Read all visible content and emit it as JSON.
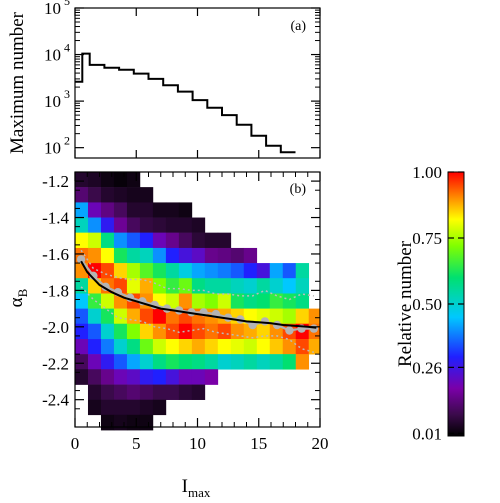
{
  "chart_data": [
    {
      "panel": "(a)",
      "type": "line",
      "step": true,
      "xlabel": "",
      "ylabel": "Maximum number",
      "yscale": "log",
      "xlim": [
        0,
        20
      ],
      "ylim": [
        60,
        100000
      ],
      "ytick_labels": [
        "10^2",
        "10^3",
        "10^4",
        "10^5"
      ],
      "yticks": [
        100,
        1000,
        10000,
        100000
      ],
      "bin_edges": [
        0,
        0.6,
        1.2,
        2.4,
        3.6,
        4.8,
        6.0,
        7.2,
        8.4,
        9.6,
        10.8,
        12.0,
        13.2,
        14.4,
        15.6,
        16.8,
        18.0
      ],
      "values": [
        2600,
        10500,
        6000,
        5200,
        4700,
        3900,
        3000,
        2200,
        1600,
        1050,
        720,
        500,
        310,
        180,
        110,
        80
      ]
    },
    {
      "panel": "(b)",
      "type": "heatmap",
      "xlabel": "I",
      "xlabel_sub": "max",
      "ylabel": "α",
      "ylabel_sub": "B",
      "xlim": [
        0,
        20
      ],
      "ylim": [
        -2.55,
        -1.15
      ],
      "xticks": [
        0,
        5,
        10,
        15,
        20
      ],
      "yticks": [
        -1.2,
        -1.4,
        -1.6,
        -1.8,
        -2.0,
        -2.2,
        -2.4
      ],
      "x_bin_edges": [
        0,
        1.06,
        2.12,
        3.18,
        4.24,
        5.3,
        6.36,
        7.42,
        8.48,
        9.54,
        10.6,
        11.66,
        12.72,
        13.78,
        14.84,
        15.9,
        16.96,
        18.02,
        19.08,
        20.14
      ],
      "y_bin_edges": [
        -1.15,
        -1.233,
        -1.317,
        -1.4,
        -1.483,
        -1.567,
        -1.65,
        -1.733,
        -1.817,
        -1.9,
        -1.983,
        -2.067,
        -2.15,
        -2.233,
        -2.317,
        -2.4,
        -2.483,
        -2.567
      ],
      "values": [
        [
          0.05,
          0.04,
          0.02,
          0.01,
          0.02,
          null,
          null,
          null,
          null,
          null,
          null,
          null,
          null,
          null,
          null,
          null,
          null,
          null,
          null
        ],
        [
          0.12,
          0.08,
          0.05,
          0.04,
          0.03,
          0.03,
          null,
          null,
          null,
          null,
          null,
          null,
          null,
          null,
          null,
          null,
          null,
          null,
          null
        ],
        [
          0.42,
          0.2,
          0.14,
          0.1,
          0.05,
          0.05,
          0.03,
          0.03,
          0.02,
          null,
          null,
          null,
          null,
          null,
          null,
          null,
          null,
          null,
          null
        ],
        [
          0.52,
          0.4,
          0.28,
          0.16,
          0.1,
          0.07,
          0.06,
          0.05,
          0.05,
          0.04,
          null,
          null,
          null,
          null,
          null,
          null,
          null,
          null,
          null
        ],
        [
          0.82,
          0.78,
          0.58,
          0.4,
          0.35,
          0.3,
          0.2,
          0.15,
          0.1,
          0.06,
          0.05,
          0.05,
          null,
          null,
          null,
          null,
          null,
          null,
          null
        ],
        [
          0.92,
          0.9,
          0.82,
          0.62,
          0.55,
          0.52,
          0.4,
          0.3,
          0.25,
          0.22,
          0.15,
          0.14,
          0.12,
          0.15,
          null,
          null,
          null,
          null,
          null
        ],
        [
          0.9,
          1.0,
          0.95,
          0.85,
          0.75,
          0.68,
          0.62,
          0.55,
          0.48,
          0.42,
          0.4,
          0.38,
          0.35,
          0.3,
          0.25,
          0.42,
          0.35,
          0.55,
          null
        ],
        [
          0.55,
          0.85,
          0.92,
          0.95,
          0.8,
          0.88,
          0.72,
          0.65,
          0.7,
          0.58,
          0.55,
          0.55,
          0.52,
          0.5,
          0.55,
          0.5,
          0.45,
          0.52,
          null
        ],
        [
          0.45,
          0.65,
          0.78,
          0.9,
          0.95,
          0.9,
          0.82,
          0.78,
          0.9,
          0.75,
          0.72,
          0.78,
          0.62,
          0.58,
          0.6,
          0.65,
          0.62,
          0.58,
          null
        ],
        [
          0.35,
          0.5,
          0.62,
          0.78,
          0.88,
          0.95,
          1.0,
          0.92,
          0.95,
          0.92,
          0.9,
          0.88,
          0.85,
          0.82,
          0.8,
          0.78,
          0.75,
          0.85,
          0.9
        ],
        [
          0.3,
          0.35,
          0.5,
          0.62,
          0.72,
          0.85,
          0.9,
          0.95,
          1.0,
          0.95,
          0.92,
          0.95,
          0.9,
          0.88,
          0.85,
          0.9,
          0.95,
          1.0,
          0.92
        ],
        [
          0.2,
          0.3,
          0.38,
          0.5,
          0.58,
          0.7,
          0.78,
          0.82,
          0.85,
          0.88,
          0.85,
          0.82,
          0.8,
          0.78,
          0.82,
          0.86,
          0.9,
          0.95,
          0.88
        ],
        [
          0.1,
          0.2,
          0.28,
          0.35,
          0.42,
          0.5,
          0.58,
          0.62,
          0.6,
          0.58,
          0.55,
          0.5,
          0.52,
          0.55,
          0.52,
          0.55,
          0.6,
          0.9,
          null
        ],
        [
          0.05,
          0.1,
          0.15,
          0.2,
          0.22,
          0.28,
          0.3,
          0.25,
          0.2,
          0.2,
          0.18,
          null,
          null,
          null,
          null,
          null,
          null,
          null,
          null
        ],
        [
          null,
          0.05,
          0.08,
          0.1,
          0.12,
          0.1,
          0.08,
          0.08,
          0.06,
          0.05,
          null,
          null,
          null,
          null,
          null,
          null,
          null,
          null,
          null
        ],
        [
          null,
          0.03,
          0.05,
          0.05,
          0.05,
          0.04,
          0.03,
          null,
          null,
          null,
          null,
          null,
          null,
          null,
          null,
          null,
          null,
          null,
          null
        ],
        [
          null,
          null,
          0.02,
          0.03,
          0.02,
          0.02,
          null,
          null,
          null,
          null,
          null,
          null,
          null,
          null,
          null,
          null,
          null,
          null,
          null
        ]
      ],
      "points": {
        "x": [
          0.5,
          1.5,
          2.5,
          3.5,
          4.5,
          5.5,
          6.5,
          7.5,
          8.5,
          9.5,
          10.5,
          11.5,
          12.5,
          13.5,
          14.5,
          15.5,
          16.5,
          17.5,
          18.5,
          19.5
        ],
        "y": [
          -1.63,
          -1.72,
          -1.78,
          -1.81,
          -1.84,
          -1.86,
          -1.88,
          -1.9,
          -1.91,
          -1.92,
          -1.92,
          -1.93,
          -1.95,
          -1.96,
          -1.99,
          -1.97,
          -1.99,
          -2.02,
          -2.01,
          -2.01
        ]
      },
      "fit": {
        "x": [
          0.5,
          1,
          2,
          3,
          4,
          5,
          6,
          7,
          8,
          9,
          10,
          11,
          12,
          13,
          14,
          15,
          16,
          17,
          18,
          19,
          19.7
        ],
        "y": [
          -1.64,
          -1.7,
          -1.77,
          -1.81,
          -1.84,
          -1.86,
          -1.88,
          -1.9,
          -1.91,
          -1.92,
          -1.93,
          -1.94,
          -1.95,
          -1.96,
          -1.97,
          -1.975,
          -1.98,
          -1.99,
          -1.995,
          -2.0,
          -2.005
        ]
      },
      "dotted_upper": {
        "x": [
          0.5,
          1.5,
          2.5,
          3.5,
          4.5,
          5.5,
          6.5,
          7.5,
          8.5,
          9.5,
          10.5,
          11.5,
          12.5,
          13.5,
          14.5,
          15.5,
          16.5,
          17.5,
          18.5,
          19.5
        ],
        "y": [
          -1.58,
          -1.68,
          -1.71,
          -1.73,
          -1.74,
          -1.74,
          -1.76,
          -1.79,
          -1.79,
          -1.8,
          -1.8,
          -1.82,
          -1.82,
          -1.83,
          -1.83,
          -1.8,
          -1.83,
          -1.85,
          -1.82,
          -1.83
        ]
      },
      "dotted_lower": {
        "x": [
          0.5,
          1.5,
          2.5,
          3.5,
          4.5,
          5.5,
          6.5,
          7.5,
          8.5,
          9.5,
          10.5,
          11.5,
          12.5,
          13.5,
          14.5,
          15.5,
          16.5,
          17.5,
          18.5,
          19.5
        ],
        "y": [
          -1.78,
          -1.85,
          -1.9,
          -1.95,
          -1.96,
          -1.97,
          -2.0,
          -2.01,
          -2.03,
          -2.02,
          -2.01,
          -2.03,
          -2.04,
          -2.05,
          -2.06,
          -2.05,
          -2.05,
          -2.07,
          -2.12,
          -2.14
        ]
      }
    }
  ],
  "colorbar": {
    "label": "Relative number",
    "ticks": [
      1.0,
      0.75,
      0.5,
      0.26,
      0.01
    ],
    "tick_labels": [
      "1.00",
      "0.75",
      "0.50",
      "0.26",
      "0.01"
    ]
  },
  "tick_text": {
    "top_y": [
      "10",
      "10",
      "10",
      "10"
    ],
    "top_y_exp": [
      "2",
      "3",
      "4",
      "5"
    ],
    "bottom_x": [
      "0",
      "5",
      "10",
      "15",
      "20"
    ],
    "bottom_y": [
      "-1.2",
      "-1.4",
      "-1.6",
      "-1.8",
      "-2.0",
      "-2.2",
      "-2.4"
    ]
  }
}
